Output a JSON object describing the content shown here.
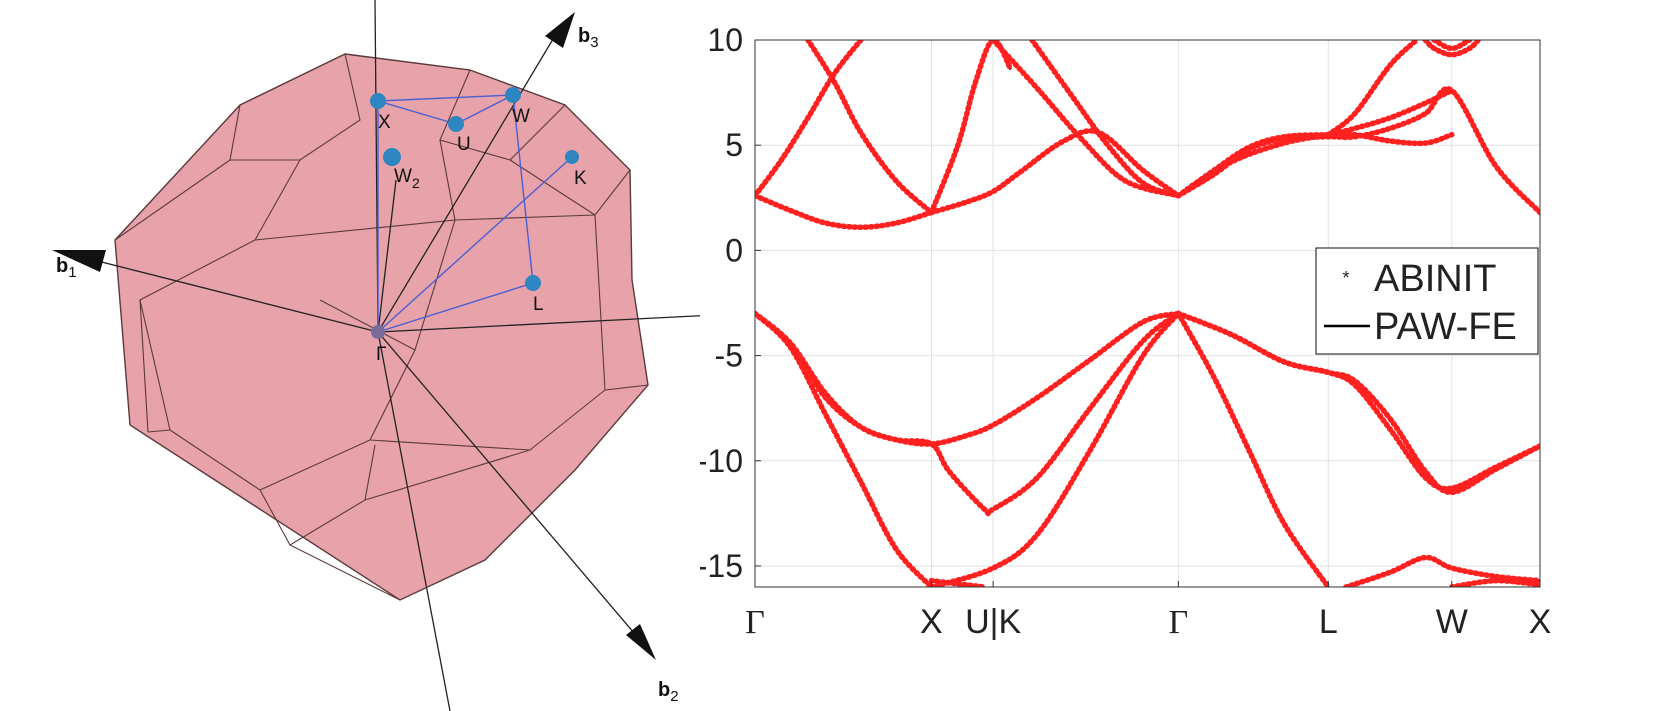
{
  "figure": {
    "bz_labels": {
      "X": "X",
      "U": "U",
      "W": "W",
      "W2": "W",
      "W2_sub": "2",
      "K": "K",
      "L": "L",
      "Gamma": "Γ",
      "b1": "b",
      "b1_sub": "1",
      "b2": "b",
      "b2_sub": "2",
      "b3": "b",
      "b3_sub": "3"
    },
    "colors": {
      "bz_face": "#e8a3aa",
      "bz_edge": "#5b3a3c",
      "kpoint": "#2e86c1",
      "kpath": "#4b5fd4",
      "abinit": "#ff2020",
      "pawfe": "#000000"
    }
  },
  "chart_data": {
    "type": "line",
    "title": "",
    "xlabel": "",
    "ylabel": "",
    "ylim": [
      -16,
      10
    ],
    "yticks": [
      10,
      5,
      0,
      -5,
      -10,
      -15
    ],
    "ytick_labels": [
      "10",
      "5",
      "0",
      "-5",
      "-10",
      "-15"
    ],
    "xticks": [
      {
        "pos": 0.0,
        "label": "Γ",
        "symbol": true
      },
      {
        "pos": 1.0,
        "label": "X",
        "symbol": false
      },
      {
        "pos": 1.35,
        "label": "U|K",
        "symbol": false
      },
      {
        "pos": 2.4,
        "label": "Γ",
        "symbol": true
      },
      {
        "pos": 3.25,
        "label": "L",
        "symbol": false
      },
      {
        "pos": 3.95,
        "label": "W",
        "symbol": false
      },
      {
        "pos": 4.45,
        "label": "X",
        "symbol": false
      }
    ],
    "xlim": [
      0,
      4.45
    ],
    "grid": true,
    "legend": {
      "position": "right",
      "entries": [
        {
          "name": "ABINIT",
          "marker": "*"
        },
        {
          "name": "PAW-FE",
          "marker": "line"
        }
      ]
    },
    "series": [
      {
        "band": 1,
        "x": [
          0.0,
          0.2,
          0.4,
          0.6,
          0.8,
          1.0
        ],
        "y": [
          -3.0,
          -4.6,
          -7.8,
          -11.0,
          -14.2,
          -16.0
        ]
      },
      {
        "band": 1,
        "x": [
          1.0,
          1.3
        ],
        "y": [
          -15.7,
          -16.0
        ]
      },
      {
        "band": 2,
        "x": [
          0.0,
          0.2,
          0.4,
          0.6,
          0.8,
          1.0,
          1.2,
          1.35,
          1.6,
          1.9,
          2.2,
          2.4
        ],
        "y": [
          -3.0,
          -4.5,
          -7.0,
          -8.4,
          -9.0,
          -9.2,
          -8.8,
          -8.3,
          -7.0,
          -5.2,
          -3.4,
          -3.0
        ]
      },
      {
        "band": 3,
        "x": [
          0.0,
          0.2,
          0.4,
          0.6,
          0.8,
          1.0,
          1.1,
          1.3,
          1.35,
          1.6,
          1.9,
          2.2,
          2.4
        ],
        "y": [
          -3.0,
          -4.4,
          -6.8,
          -8.4,
          -9.0,
          -9.2,
          -10.5,
          -12.3,
          -12.3,
          -10.8,
          -7.5,
          -4.3,
          -3.0
        ]
      },
      {
        "band": 4,
        "x": [
          1.0,
          1.35,
          1.6,
          1.9,
          2.2,
          2.4
        ],
        "y": [
          -16.0,
          -15.1,
          -13.5,
          -9.5,
          -5.0,
          -3.0
        ]
      },
      {
        "band": 5,
        "x": [
          2.4,
          2.6,
          2.8,
          3.0,
          3.25
        ],
        "y": [
          -3.0,
          -6.0,
          -9.5,
          -13.0,
          -16.0
        ]
      },
      {
        "band": 6,
        "x": [
          2.4,
          2.7,
          3.0,
          3.25,
          3.4,
          3.6,
          3.8,
          3.95,
          4.2,
          4.45
        ],
        "y": [
          -3.0,
          -4.0,
          -5.3,
          -5.8,
          -6.4,
          -8.5,
          -10.8,
          -11.3,
          -10.3,
          -9.3
        ]
      },
      {
        "band": 7,
        "x": [
          2.4,
          2.7,
          3.0,
          3.25,
          3.4,
          3.6,
          3.8,
          3.95,
          4.2,
          4.45
        ],
        "y": [
          -3.0,
          -4.0,
          -5.3,
          -5.8,
          -6.2,
          -8.0,
          -10.5,
          -11.5,
          -10.4,
          -9.3
        ]
      },
      {
        "band": 8,
        "x": [
          3.35,
          3.6,
          3.8,
          3.95,
          4.2,
          4.45
        ],
        "y": [
          -16.0,
          -15.3,
          -14.6,
          -15.1,
          -15.5,
          -15.7
        ]
      },
      {
        "band": 9,
        "x": [
          3.95,
          4.2,
          4.45
        ],
        "y": [
          -16.0,
          -15.7,
          -15.9
        ]
      },
      {
        "band": 10,
        "x": [
          0.0,
          0.2,
          0.4,
          0.6,
          0.8,
          1.0
        ],
        "y": [
          2.6,
          1.9,
          1.3,
          1.1,
          1.3,
          1.8
        ]
      },
      {
        "band": 11,
        "x": [
          1.0,
          1.2,
          1.35,
          1.5,
          1.75,
          1.95,
          2.2,
          2.4
        ],
        "y": [
          1.8,
          2.3,
          2.8,
          3.7,
          5.2,
          5.6,
          3.8,
          2.6
        ]
      },
      {
        "band": 12,
        "x": [
          0.0,
          0.15,
          0.3,
          0.45,
          0.6
        ],
        "y": [
          2.6,
          4.3,
          6.3,
          8.4,
          10.0
        ]
      },
      {
        "band": 13,
        "x": [
          0.3,
          0.45,
          0.6,
          0.8,
          1.0
        ],
        "y": [
          10.0,
          8.0,
          5.6,
          3.3,
          1.8
        ]
      },
      {
        "band": 14,
        "x": [
          1.0,
          1.15,
          1.25,
          1.35,
          1.45
        ],
        "y": [
          1.8,
          5.0,
          8.0,
          10.0,
          8.6
        ]
      },
      {
        "band": 15,
        "x": [
          1.35,
          1.6,
          1.85,
          2.1,
          2.4
        ],
        "y": [
          10.0,
          7.7,
          5.3,
          3.3,
          2.6
        ]
      },
      {
        "band": 16,
        "x": [
          1.57,
          1.8,
          2.0,
          2.2,
          2.4
        ],
        "y": [
          10.0,
          7.3,
          5.0,
          3.2,
          2.6
        ]
      },
      {
        "band": 17,
        "x": [
          2.4,
          2.6,
          2.8,
          3.0,
          3.25,
          3.4,
          3.6,
          3.8,
          3.95,
          4.2,
          4.45
        ],
        "y": [
          2.6,
          3.6,
          4.8,
          5.3,
          5.4,
          5.4,
          5.8,
          6.5,
          7.6,
          4.0,
          1.8
        ]
      },
      {
        "band": 18,
        "x": [
          2.4,
          2.6,
          2.8,
          3.0,
          3.25,
          3.4,
          3.6,
          3.8,
          3.95
        ],
        "y": [
          2.6,
          3.8,
          4.9,
          5.4,
          5.5,
          5.5,
          5.2,
          5.1,
          5.5
        ]
      },
      {
        "band": 19,
        "x": [
          2.4,
          2.7,
          3.0,
          3.25,
          3.4,
          3.6,
          3.8,
          3.95
        ],
        "y": [
          2.6,
          4.2,
          5.1,
          5.5,
          5.8,
          6.3,
          7.0,
          7.6
        ]
      },
      {
        "band": 20,
        "x": [
          3.25,
          3.4,
          3.6,
          3.75
        ],
        "y": [
          5.5,
          6.5,
          8.8,
          10.0
        ]
      },
      {
        "band": 21,
        "x": [
          3.8,
          3.85,
          3.95,
          4.05,
          4.1
        ],
        "y": [
          10.0,
          9.6,
          9.3,
          9.6,
          10.0
        ]
      },
      {
        "band": 22,
        "x": [
          3.85,
          3.95,
          4.05
        ],
        "y": [
          10.0,
          9.6,
          10.0
        ]
      }
    ]
  }
}
